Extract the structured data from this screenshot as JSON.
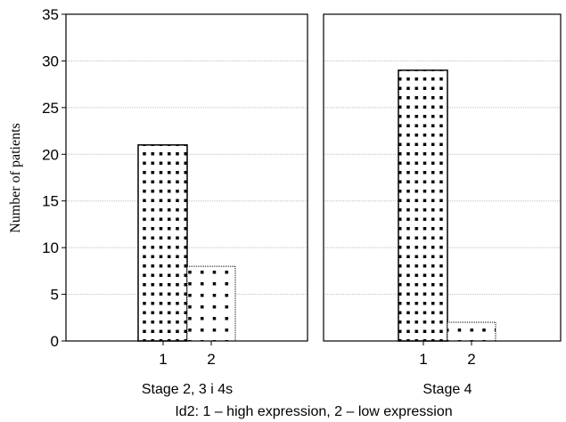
{
  "chart_data": {
    "type": "bar",
    "ylabel": "Number of patients",
    "xlabel": "Id2: 1 – high expression, 2 – low expression",
    "ylim": [
      0,
      35
    ],
    "yticks": [
      0,
      5,
      10,
      15,
      20,
      25,
      30,
      35
    ],
    "grid": true,
    "panels": [
      {
        "title": "Stage 2, 3 i 4s",
        "categories": [
          "1",
          "2"
        ],
        "values": [
          21,
          8
        ]
      },
      {
        "title": "Stage 4",
        "categories": [
          "1",
          "2"
        ],
        "values": [
          29,
          2
        ]
      }
    ]
  }
}
